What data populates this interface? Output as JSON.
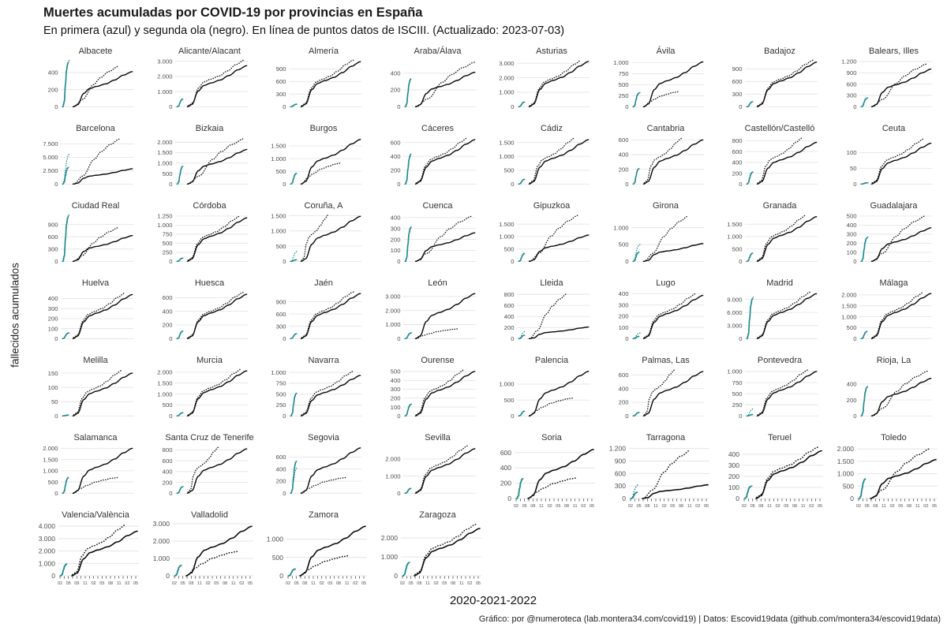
{
  "header": {
    "title": "Muertes acumuladas por COVID-19 por provincias en España",
    "subtitle": "En primera (azul) y segunda ola (negro). En línea de puntos datos de ISCIII. (Actualizado: 2023-07-03)"
  },
  "axis_labels": {
    "y_label": "fallecidos acumulados",
    "x_label": "2020-2021-2022"
  },
  "footer": {
    "credit": "Gráfico: por @numeroteca (lab.montera34.com/covid19) | Datos: Escovid19data (github.com/montera34/escovid19data)"
  },
  "colors": {
    "first_wave": "#1f8b8e",
    "second_wave": "#0d0d0d",
    "grid_line": "#e4e4e4",
    "tick_text": "#4d4d4d",
    "panel_title_text": "#333333",
    "axis_tick_mark": "#333333"
  },
  "chart_data": {
    "type": "line",
    "title": "Muertes acumuladas por COVID-19 por provincias en España",
    "x_tick_labels": [
      "02",
      "05",
      "08",
      "11",
      "02",
      "05",
      "08",
      "11",
      "02",
      "05"
    ],
    "series_info": [
      {
        "name": "primera ola",
        "color": "#1f8b8e",
        "style": "solid"
      },
      {
        "name": "segunda ola",
        "color": "#0d0d0d",
        "style": "solid"
      },
      {
        "name": "datos ISCIII",
        "color": "both",
        "style": "dotted"
      }
    ],
    "province_fields": [
      "name",
      "y_tick_values",
      "y_max",
      "first_wave_peak",
      "first_wave_isciii_peak",
      "second_wave_final",
      "isciii_final",
      "isciii_end_fraction"
    ],
    "provinces": [
      [
        "Albacete",
        [
          0,
          200,
          400
        ],
        550,
        520,
        null,
        410,
        470,
        0.8
      ],
      [
        "Alicante/Alacant",
        [
          0,
          1000,
          2000,
          3000
        ],
        3100,
        500,
        null,
        2700,
        3000,
        0.97
      ],
      [
        "Almería",
        [
          0,
          300,
          600,
          900
        ],
        1120,
        60,
        null,
        1070,
        1080,
        0.9
      ],
      [
        "Araba/Álava",
        [
          0,
          200,
          400
        ],
        560,
        330,
        345,
        410,
        530,
        1.0
      ],
      [
        "Asturias",
        [
          0,
          1000,
          2000,
          3000
        ],
        3250,
        330,
        null,
        3120,
        3130,
        0.9
      ],
      [
        "Ávila",
        [
          0,
          250,
          500,
          750,
          1000
        ],
        1070,
        310,
        null,
        1020,
        340,
        0.65
      ],
      [
        "Badajoz",
        [
          0,
          300,
          600,
          900
        ],
        1120,
        120,
        null,
        1060,
        1080,
        0.95
      ],
      [
        "Balears, Illes",
        [
          0,
          300,
          600,
          900,
          1200
        ],
        1250,
        230,
        null,
        1000,
        1130,
        0.93
      ],
      [
        "Barcelona",
        [
          0,
          2500,
          5000,
          7500
        ],
        8800,
        3100,
        5600,
        2850,
        8400,
        0.82
      ],
      [
        "Bizkaia",
        [
          0,
          500,
          1000,
          1500,
          2000
        ],
        2250,
        850,
        null,
        1650,
        2150,
        0.95
      ],
      [
        "Burgos",
        [
          0,
          500,
          1000,
          1500
        ],
        1850,
        420,
        null,
        1750,
        820,
        0.72
      ],
      [
        "Cáceres",
        [
          0,
          200,
          400,
          600
        ],
        680,
        430,
        null,
        640,
        650,
        0.9
      ],
      [
        "Cádiz",
        [
          0,
          500,
          1000,
          1500
        ],
        1700,
        170,
        null,
        1600,
        1610,
        0.8
      ],
      [
        "Cantabria",
        [
          0,
          200,
          400,
          600
        ],
        640,
        210,
        null,
        600,
        605,
        0.7
      ],
      [
        "Castellón/Castelló",
        [
          0,
          200,
          400,
          600,
          800
        ],
        870,
        220,
        null,
        770,
        830,
        0.8
      ],
      [
        "Ceuta",
        [
          0,
          50,
          100
        ],
        150,
        4,
        null,
        130,
        140,
        0.9
      ],
      [
        "Ciudad Real",
        [
          0,
          300,
          600,
          900
        ],
        1150,
        1100,
        null,
        630,
        820,
        0.8
      ],
      [
        "Córdoba",
        [
          0,
          250,
          500,
          750,
          1000,
          1250
        ],
        1300,
        90,
        null,
        1200,
        1210,
        0.9
      ],
      [
        "Coruña, A",
        [
          0,
          500,
          1000,
          1500
        ],
        1550,
        50,
        330,
        1480,
        1490,
        0.55
      ],
      [
        "Cuenca",
        [
          0,
          100,
          200,
          300,
          400
        ],
        430,
        310,
        null,
        260,
        410,
        0.95
      ],
      [
        "Gipuzkoa",
        [
          0,
          500,
          1000,
          1500
        ],
        1900,
        320,
        null,
        1060,
        1850,
        0.85
      ],
      [
        "Girona",
        [
          0,
          500,
          1000
        ],
        1400,
        270,
        500,
        530,
        1350,
        0.8
      ],
      [
        "Granada",
        [
          0,
          500,
          1000,
          1500
        ],
        1900,
        330,
        null,
        1800,
        1810,
        0.85
      ],
      [
        "Guadalajara",
        [
          0,
          100,
          200,
          300,
          400,
          500
        ],
        520,
        260,
        null,
        370,
        500,
        0.92
      ],
      [
        "Huelva",
        [
          0,
          100,
          200,
          300,
          400
        ],
        470,
        55,
        null,
        440,
        445,
        0.9
      ],
      [
        "Huesca",
        [
          0,
          200,
          400,
          600
        ],
        690,
        110,
        null,
        650,
        660,
        0.95
      ],
      [
        "Jaén",
        [
          0,
          300,
          600,
          900
        ],
        1150,
        120,
        null,
        1100,
        1110,
        0.9
      ],
      [
        "León",
        [
          0,
          1000,
          2000,
          3000
        ],
        3350,
        400,
        null,
        3200,
        700,
        0.78
      ],
      [
        "Lleida",
        [
          0,
          200,
          400,
          600,
          800
        ],
        850,
        60,
        130,
        210,
        810,
        0.7
      ],
      [
        "Lugo",
        [
          0,
          100,
          200,
          300,
          400
        ],
        420,
        20,
        50,
        385,
        390,
        0.9
      ],
      [
        "Madrid",
        [
          0,
          3000,
          6000,
          9000
        ],
        10800,
        9200,
        null,
        10300,
        10450,
        0.92
      ],
      [
        "Málaga",
        [
          0,
          500,
          1000,
          1500,
          2000
        ],
        2150,
        330,
        null,
        2060,
        2070,
        0.9
      ],
      [
        "Melilla",
        [
          0,
          50,
          100,
          150
        ],
        165,
        3,
        null,
        150,
        155,
        0.85
      ],
      [
        "Murcia",
        [
          0,
          500,
          1000,
          1500,
          2000
        ],
        2150,
        150,
        null,
        2060,
        2100,
        0.93
      ],
      [
        "Navarra",
        [
          0,
          250,
          500,
          750,
          1000
        ],
        1080,
        520,
        null,
        930,
        1000,
        0.9
      ],
      [
        "Ourense",
        [
          0,
          100,
          200,
          300,
          400,
          500
        ],
        530,
        130,
        null,
        500,
        505,
        0.85
      ],
      [
        "Palencia",
        [
          0,
          500,
          1000
        ],
        1480,
        150,
        null,
        1400,
        560,
        0.78
      ],
      [
        "Palmas, Las",
        [
          0,
          200,
          400,
          600
        ],
        690,
        50,
        null,
        650,
        655,
        0.6
      ],
      [
        "Pontevedra",
        [
          0,
          250,
          500,
          750,
          1000
        ],
        1060,
        30,
        160,
        1000,
        1010,
        0.88
      ],
      [
        "Rioja, La",
        [
          0,
          200,
          400
        ],
        590,
        360,
        null,
        470,
        560,
        0.95
      ],
      [
        "Salamanca",
        [
          0,
          500,
          1000,
          1500,
          2000
        ],
        2100,
        700,
        null,
        2000,
        700,
        0.8
      ],
      [
        "Santa Cruz de Tenerife",
        [
          0,
          200,
          400,
          600,
          800
        ],
        870,
        120,
        null,
        820,
        825,
        0.6
      ],
      [
        "Segovia",
        [
          0,
          200,
          400,
          600
        ],
        780,
        530,
        430,
        750,
        260,
        0.8
      ],
      [
        "Sevilla",
        [
          0,
          1000,
          2000
        ],
        2750,
        280,
        null,
        2600,
        2700,
        0.9
      ],
      [
        "Soria",
        [
          0,
          200,
          400,
          600
        ],
        680,
        260,
        null,
        640,
        270,
        0.8
      ],
      [
        "Tarragona",
        [
          0,
          300,
          600,
          900,
          1200
        ],
        1250,
        150,
        330,
        330,
        1160,
        0.78
      ],
      [
        "Teruel",
        [
          0,
          100,
          200,
          300,
          400
        ],
        470,
        110,
        null,
        430,
        450,
        0.95
      ],
      [
        "Toledo",
        [
          0,
          500,
          1000,
          1500,
          2000
        ],
        2100,
        790,
        null,
        1570,
        2000,
        0.92
      ],
      [
        "Valencia/València",
        [
          0,
          1000,
          2000,
          3000,
          4000
        ],
        4200,
        950,
        null,
        3600,
        4000,
        0.85
      ],
      [
        "Valladolid",
        [
          0,
          1000,
          2000,
          3000
        ],
        3000,
        600,
        null,
        2850,
        1400,
        0.82
      ],
      [
        "Zamora",
        [
          0,
          500,
          1000
        ],
        1420,
        180,
        null,
        1350,
        550,
        0.8
      ],
      [
        "Zaragoza",
        [
          0,
          1000,
          2000
        ],
        2750,
        700,
        null,
        2500,
        2650,
        0.95
      ]
    ]
  }
}
